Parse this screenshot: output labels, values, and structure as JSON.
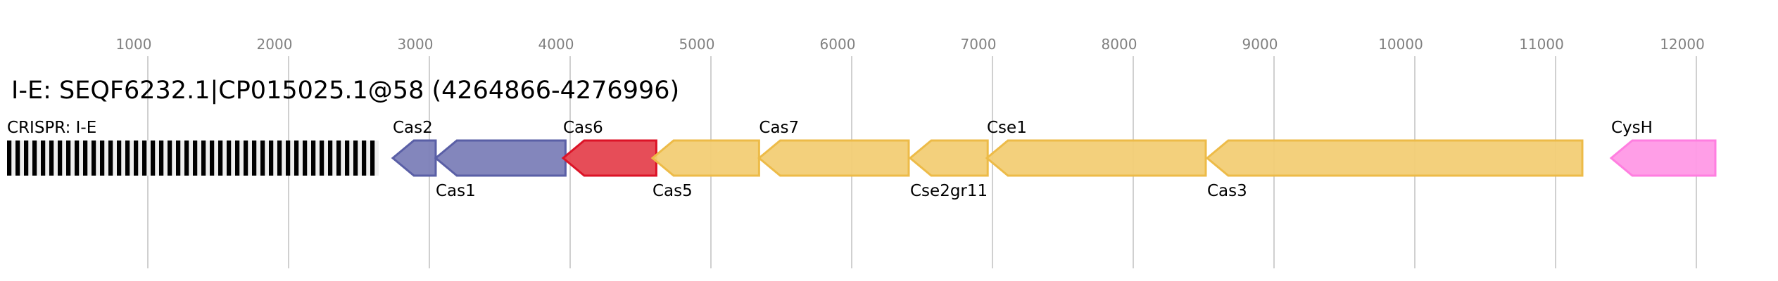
{
  "title": "I-E: SEQF6232.1|CP015025.1@58 (4264866-4276996)",
  "chart_data": {
    "type": "genome-map",
    "axis": {
      "ticks": [
        1000,
        2000,
        3000,
        4000,
        5000,
        6000,
        7000,
        8000,
        9000,
        10000,
        11000,
        12000
      ],
      "grid": true
    },
    "crispr": {
      "label": "CRISPR: I-E",
      "start": 0,
      "end": 2640,
      "repeats": 44,
      "label_position": "above"
    },
    "genes": [
      {
        "name": "Cas2",
        "start": 2740,
        "end": 3045,
        "strand": "-",
        "label_position": "above",
        "fill": "#7c7fb8",
        "stroke": "#5a5fa6"
      },
      {
        "name": "Cas1",
        "start": 3045,
        "end": 3967,
        "strand": "-",
        "label_position": "below",
        "fill": "#7c7fb8",
        "stroke": "#5a5fa6"
      },
      {
        "name": "Cas6",
        "start": 3950,
        "end": 4612,
        "strand": "-",
        "label_position": "above",
        "fill": "#e5434f",
        "stroke": "#dc1327"
      },
      {
        "name": "Cas5",
        "start": 4585,
        "end": 5342,
        "strand": "-",
        "label_position": "below",
        "fill": "#f2cd75",
        "stroke": "#edbb48"
      },
      {
        "name": "Cas7",
        "start": 5342,
        "end": 6405,
        "strand": "-",
        "label_position": "above",
        "fill": "#f2cd75",
        "stroke": "#edbb48"
      },
      {
        "name": "Cse2gr11",
        "start": 6415,
        "end": 6966,
        "strand": "-",
        "label_position": "below",
        "fill": "#f2cd75",
        "stroke": "#edbb48"
      },
      {
        "name": "Cse1",
        "start": 6960,
        "end": 8515,
        "strand": "-",
        "label_position": "above",
        "fill": "#f2cd75",
        "stroke": "#edbb48"
      },
      {
        "name": "Cas3",
        "start": 8525,
        "end": 11190,
        "strand": "-",
        "label_position": "below",
        "fill": "#f2cd75",
        "stroke": "#edbb48"
      },
      {
        "name": "CysH",
        "start": 11395,
        "end": 12135,
        "strand": "-",
        "label_position": "above",
        "fill": "#ff99e6",
        "stroke": "#ff7ee0"
      }
    ]
  }
}
